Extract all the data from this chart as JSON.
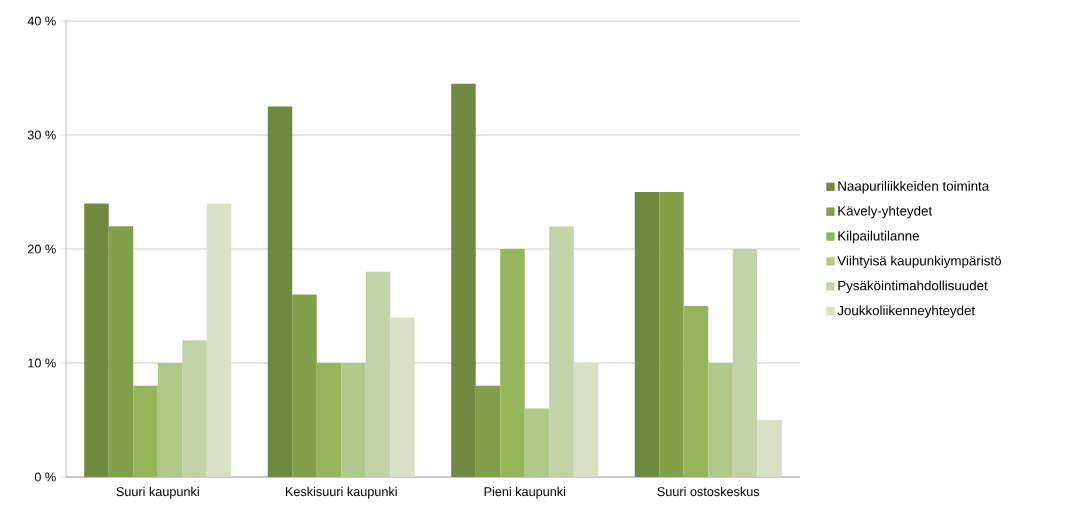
{
  "chart_data": {
    "type": "bar",
    "categories": [
      "Suuri kaupunki",
      "Keskisuuri kaupunki",
      "Pieni kaupunki",
      "Suuri ostoskeskus"
    ],
    "series": [
      {
        "name": "Naapuriliikkeiden toiminta",
        "color": "#71893f",
        "values": [
          24,
          32.5,
          34.5,
          25
        ]
      },
      {
        "name": "Kävely-yhteydet",
        "color": "#82a04a",
        "values": [
          22,
          16,
          8,
          25
        ]
      },
      {
        "name": "Kilpailutilanne",
        "color": "#95b55a",
        "values": [
          8,
          10,
          20,
          15
        ]
      },
      {
        "name": "Viihtyisä kaupunkiympäristö",
        "color": "#aec987",
        "values": [
          10,
          10,
          6,
          10
        ]
      },
      {
        "name": "Pysäköintimahdollisuudet",
        "color": "#c3d3a7",
        "values": [
          12,
          18,
          22,
          20
        ]
      },
      {
        "name": "Joukkoliikenneyhteydet",
        "color": "#d7e0c4",
        "values": [
          24,
          14,
          10,
          5
        ]
      }
    ],
    "ylim": [
      0,
      40
    ],
    "yticks": [
      {
        "value": 0,
        "label": "0 %"
      },
      {
        "value": 10,
        "label": "10 %"
      },
      {
        "value": 20,
        "label": "20 %"
      },
      {
        "value": 30,
        "label": "30 %"
      },
      {
        "value": 40,
        "label": "40 %"
      }
    ],
    "grid": "y",
    "legend": "right"
  }
}
